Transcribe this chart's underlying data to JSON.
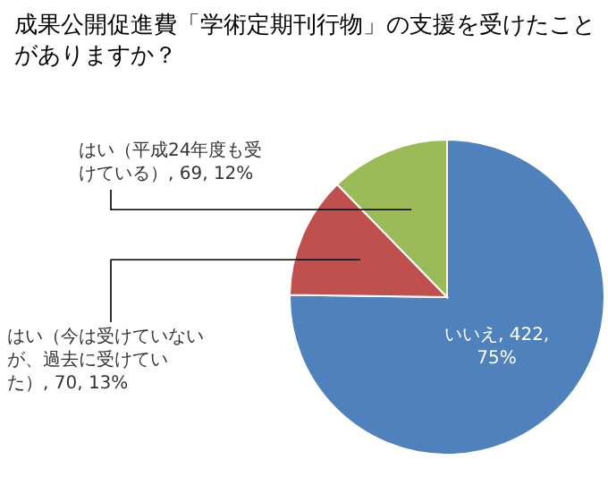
{
  "chart_data": {
    "type": "pie",
    "title": "成果公開促進費「学術定期刊行物」の支援を受けたことがありますか？",
    "categories": [
      "いいえ",
      "はい（今は受けていないが、過去に受けていた）",
      "はい（平成24年度も受けている）"
    ],
    "values": [
      422,
      70,
      69
    ],
    "value_labels": [
      "422, 75%",
      "70, 13%",
      "69, 12%"
    ],
    "colors": [
      "#4f81bd",
      "#c0504d",
      "#9bbb59"
    ]
  }
}
